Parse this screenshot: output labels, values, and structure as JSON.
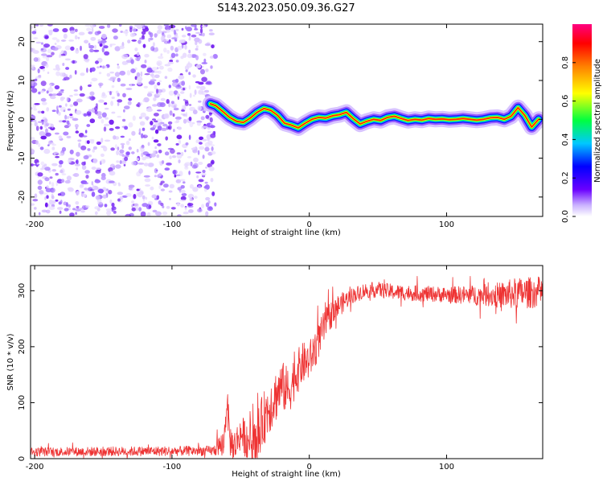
{
  "title": "S143.2023.050.09.36.G27",
  "chart_data": [
    {
      "type": "heatmap",
      "xlabel": "Height of straight line (km)",
      "ylabel": "Frequency (Hz)",
      "xlim": [
        -203,
        170
      ],
      "ylim": [
        -25,
        24.5
      ],
      "xticks": [
        -200,
        -100,
        0,
        100
      ],
      "yticks": [
        -20,
        -10,
        0,
        10,
        20
      ],
      "noise_region_x": [
        -203,
        -73
      ],
      "ridge": {
        "x": [
          -72,
          -68,
          -63,
          -58,
          -53,
          -48,
          -43,
          -38,
          -33,
          -28,
          -23,
          -18,
          -13,
          -8,
          -3,
          2,
          7,
          12,
          17,
          22,
          27,
          32,
          37,
          42,
          47,
          52,
          57,
          62,
          67,
          72,
          77,
          82,
          87,
          92,
          97,
          102,
          107,
          112,
          117,
          122,
          127,
          132,
          137,
          142,
          147,
          152,
          157,
          162,
          167
        ],
        "freq": [
          4,
          3.5,
          2,
          0.5,
          -0.5,
          -0.8,
          0.3,
          1.8,
          2.8,
          2.3,
          1,
          -1,
          -1.5,
          -2.2,
          -1,
          0,
          0.5,
          0.3,
          0.9,
          1.2,
          1.8,
          0.2,
          -1.2,
          -0.5,
          0,
          -0.3,
          0.5,
          0.8,
          0.2,
          -0.3,
          0,
          -0.2,
          0.2,
          0,
          0.1,
          -0.1,
          0,
          0.2,
          0,
          -0.2,
          0,
          0.4,
          0.5,
          0,
          0.8,
          3,
          1,
          -2,
          0
        ]
      },
      "colorbar": {
        "label": "Normalized spectral amplitude",
        "ticks": [
          "0.0",
          "0.2",
          "0.4",
          "0.6",
          "0.8"
        ],
        "range": [
          0,
          1
        ]
      }
    },
    {
      "type": "line",
      "xlabel": "Height of straight line (km)",
      "ylabel": "SNR (10 * v/v)",
      "xlim": [
        -203,
        170
      ],
      "ylim": [
        0,
        345
      ],
      "xticks": [
        -200,
        -100,
        0,
        100
      ],
      "yticks": [
        0,
        100,
        200,
        300
      ],
      "color": "#ee3333",
      "profile": {
        "x": [
          -203,
          -70,
          -62,
          -60,
          -58,
          -55,
          -50,
          -45,
          -40,
          -35,
          -30,
          -25,
          -20,
          -15,
          -10,
          -5,
          0,
          5,
          10,
          15,
          20,
          25,
          30,
          40,
          50,
          60,
          80,
          100,
          120,
          140,
          150,
          170
        ],
        "snr": [
          12,
          14,
          30,
          110,
          35,
          20,
          45,
          35,
          20,
          60,
          90,
          110,
          130,
          120,
          150,
          170,
          175,
          200,
          230,
          255,
          270,
          280,
          290,
          300,
          302,
          298,
          295,
          293,
          292,
          292,
          295,
          298
        ]
      },
      "noise": {
        "x": [
          -203,
          -70,
          -60,
          -50,
          -40,
          -30,
          -20,
          -10,
          0,
          10,
          20,
          30,
          100,
          130,
          150,
          170
        ],
        "amp": [
          8,
          9,
          30,
          30,
          45,
          50,
          45,
          40,
          35,
          30,
          22,
          14,
          14,
          20,
          28,
          28
        ]
      }
    }
  ]
}
